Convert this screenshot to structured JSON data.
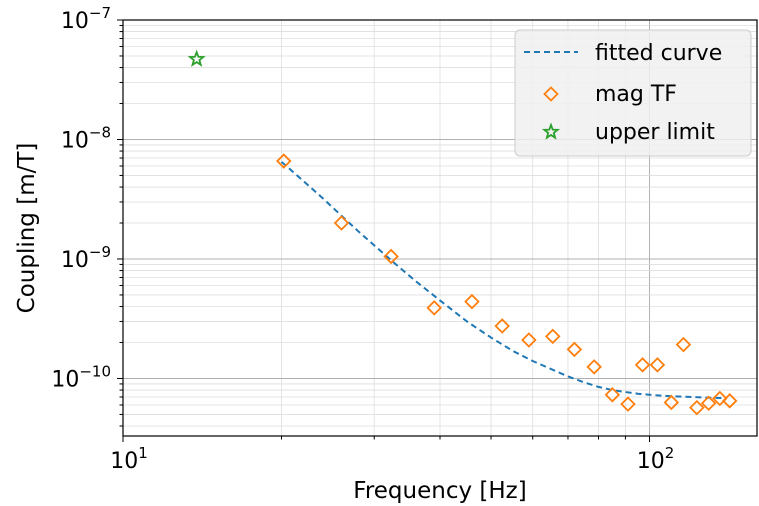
{
  "chart_data": {
    "type": "scatter",
    "title": "",
    "xlabel": "Frequency [Hz]",
    "ylabel": "Coupling [m/T]",
    "xscale": "log",
    "yscale": "log",
    "xlim": [
      10,
      160
    ],
    "ylim": [
      3.3e-11,
      1e-07
    ],
    "grid": true,
    "legend_position": "top-right",
    "x_ticks": [
      {
        "value": 10,
        "label": "10",
        "exp": "1"
      },
      {
        "value": 100,
        "label": "10",
        "exp": "2"
      }
    ],
    "y_ticks": [
      {
        "value": 1e-10,
        "label": "10",
        "exp": "−10"
      },
      {
        "value": 1e-09,
        "label": "10",
        "exp": "−9"
      },
      {
        "value": 1e-08,
        "label": "10",
        "exp": "−8"
      },
      {
        "value": 1e-07,
        "label": "10",
        "exp": "−7"
      }
    ],
    "series": [
      {
        "name": "fitted curve",
        "kind": "line",
        "style": "dashed",
        "color": "#1f77b4",
        "x": [
          20,
          22,
          24,
          26,
          28,
          30,
          33,
          36,
          40,
          45,
          50,
          55,
          60,
          65,
          70,
          75,
          80,
          85,
          90,
          95,
          100,
          110,
          120,
          130,
          140
        ],
        "y": [
          6.5e-09,
          4.5e-09,
          3.2e-09,
          2.3e-09,
          1.7e-09,
          1.3e-09,
          9e-10,
          6.5e-10,
          4.5e-10,
          3e-10,
          2.2e-10,
          1.7e-10,
          1.4e-10,
          1.2e-10,
          1.04e-10,
          9.3e-11,
          8.5e-11,
          8e-11,
          7.7e-11,
          7.45e-11,
          7.3e-11,
          7.1e-11,
          7e-11,
          6.9e-11,
          6.85e-11
        ]
      },
      {
        "name": "mag TF",
        "kind": "scatter",
        "marker": "diamond",
        "color": "#ff7f0e",
        "x": [
          20.2,
          26,
          32.3,
          39,
          46,
          52.5,
          59,
          65.5,
          72,
          78.5,
          85,
          91,
          97,
          103.5,
          110,
          116,
          123,
          129.5,
          136,
          142
        ],
        "y": [
          6.6e-09,
          2e-09,
          1.05e-09,
          3.9e-10,
          4.4e-10,
          2.75e-10,
          2.1e-10,
          2.25e-10,
          1.75e-10,
          1.25e-10,
          7.3e-11,
          6.1e-11,
          1.3e-10,
          1.3e-10,
          6.3e-11,
          1.92e-10,
          5.7e-11,
          6.2e-11,
          6.8e-11,
          6.5e-11
        ]
      },
      {
        "name": "upper limit",
        "kind": "scatter",
        "marker": "star",
        "color": "#2ca02c",
        "x": [
          13.8
        ],
        "y": [
          4.7e-08
        ]
      }
    ]
  }
}
